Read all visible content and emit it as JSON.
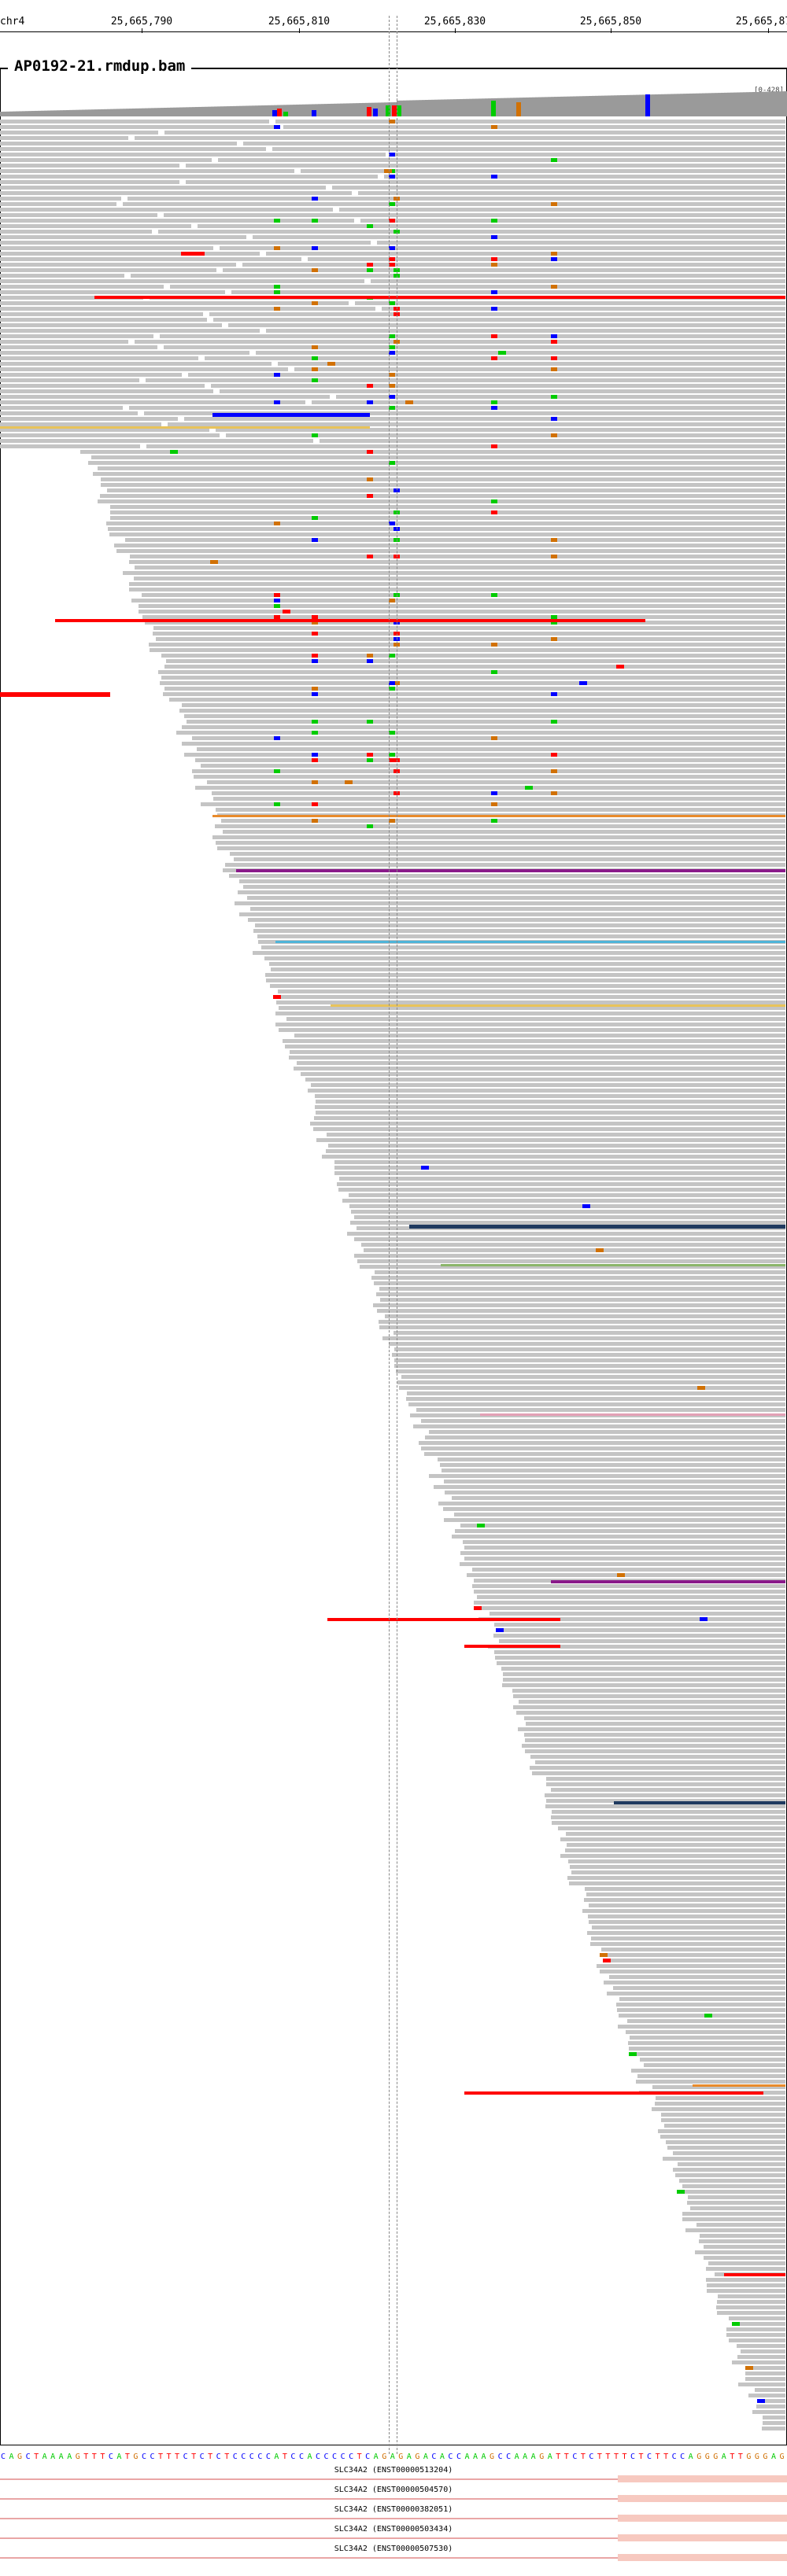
{
  "ruler": {
    "chrom": "chr4",
    "ticks": [
      "25,665,790",
      "25,665,810",
      "25,665,830",
      "25,665,850",
      "25,665,87"
    ]
  },
  "track": {
    "title": "AP0192-21.rmdup.bam",
    "coverage_scale": "[0-428]"
  },
  "colors": {
    "read": "#c4c4c4",
    "mismatch_A": "#00cc00",
    "mismatch_C": "#0000ff",
    "mismatch_G": "#d17105",
    "mismatch_T": "#ff0000",
    "insert_orange": "#e88b2c",
    "insert_purple": "#8a1a8a",
    "insert_cyan": "#4fb4d8",
    "insert_pink": "#e3a0b5",
    "insert_olive": "#8bb56a",
    "insert_yellow": "#e8c35a",
    "insert_navy": "#1f3a5f",
    "transcript": "#e9a6a6"
  },
  "reference_sequence": "CAGCTAAAAGTTTCATGCCTTTCTCTCTCCCCCATCCACCCCCTCAGAGAGACACCAAAGCCAAAGATTCTCTTTTCTCTTCCAGGGATTGGGAG",
  "transcripts": [
    {
      "label": "SLC34A2 (ENST00000513204)"
    },
    {
      "label": "SLC34A2 (ENST00000504570)"
    },
    {
      "label": "SLC34A2 (ENST00000382051)"
    },
    {
      "label": "SLC34A2 (ENST00000503434)"
    },
    {
      "label": "SLC34A2 (ENST00000507530)"
    }
  ]
}
